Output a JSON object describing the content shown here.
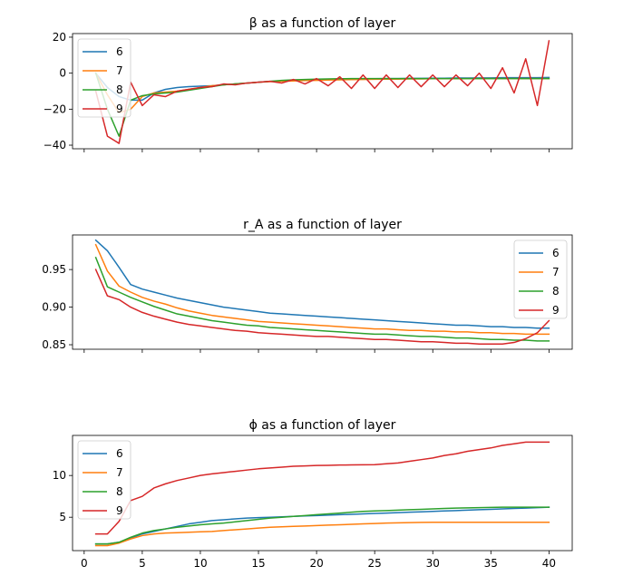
{
  "chart_data": [
    {
      "type": "line",
      "title": "β as a function of layer",
      "xlabel": "",
      "ylabel": "",
      "xlim": [
        -1,
        42
      ],
      "ylim": [
        -42,
        22
      ],
      "xticks": [
        0,
        5,
        10,
        15,
        20,
        25,
        30,
        35,
        40
      ],
      "xtick_labels_visible": false,
      "yticks": [
        -40,
        -20,
        0,
        20
      ],
      "ytick_labels": [
        "−40",
        "−20",
        "0",
        "20"
      ],
      "legend_position": "upper-left",
      "x": [
        1,
        2,
        3,
        4,
        5,
        6,
        7,
        8,
        9,
        10,
        11,
        12,
        13,
        14,
        15,
        16,
        17,
        18,
        19,
        20,
        21,
        22,
        23,
        24,
        25,
        26,
        27,
        28,
        29,
        30,
        31,
        32,
        33,
        34,
        35,
        36,
        37,
        38,
        39,
        40
      ],
      "series": [
        {
          "name": "6",
          "color": "#1f77b4",
          "values": [
            0,
            -8,
            -13,
            -15,
            -15,
            -11,
            -9,
            -8,
            -7.5,
            -7.2,
            -7,
            -6.5,
            -6,
            -5.5,
            -5,
            -4.6,
            -4.3,
            -4,
            -3.8,
            -3.6,
            -3.5,
            -3.4,
            -3.3,
            -3.2,
            -3.1,
            -3,
            -3,
            -2.9,
            -2.9,
            -2.8,
            -2.8,
            -2.7,
            -2.7,
            -2.6,
            -2.6,
            -2.5,
            -2.5,
            -2.5,
            -2.5,
            -2.4
          ]
        },
        {
          "name": "7",
          "color": "#ff7f0e",
          "values": [
            0,
            -12,
            -22,
            -20,
            -13,
            -11,
            -10.5,
            -10,
            -9,
            -8,
            -7,
            -6.5,
            -6,
            -5.5,
            -5,
            -4.7,
            -4.5,
            -4.3,
            -4.1,
            -4,
            -3.8,
            -3.7,
            -3.6,
            -3.5,
            -3.4,
            -3.3,
            -3.3,
            -3.2,
            -3.2,
            -3.1,
            -3.1,
            -3.1,
            -3,
            -3,
            -3,
            -3,
            -3,
            -3,
            -3,
            -3
          ]
        },
        {
          "name": "8",
          "color": "#2ca02c",
          "values": [
            0,
            -20,
            -35,
            -15,
            -12.5,
            -11.5,
            -11,
            -10.5,
            -9.5,
            -8.5,
            -7.5,
            -6.5,
            -6,
            -5.5,
            -5,
            -4.5,
            -4,
            -3.7,
            -3.5,
            -3.3,
            -3.2,
            -3.1,
            -3,
            -3,
            -3,
            -3,
            -3,
            -3,
            -3,
            -3,
            -3,
            -3,
            -3,
            -3,
            -3,
            -3,
            -3,
            -3,
            -3,
            -3
          ]
        },
        {
          "name": "9",
          "color": "#d62728",
          "values": [
            -10,
            -35,
            -39,
            -5,
            -18,
            -12,
            -13,
            -10,
            -9,
            -8,
            -7.5,
            -6,
            -6.5,
            -5.5,
            -5,
            -4.5,
            -5.5,
            -3.5,
            -6,
            -3,
            -7,
            -2,
            -8.5,
            -1,
            -8.5,
            -1,
            -8,
            -1,
            -7.5,
            -1,
            -7.5,
            -1,
            -7,
            0,
            -8.5,
            3,
            -11,
            8,
            -18,
            18
          ]
        }
      ]
    },
    {
      "type": "line",
      "title": "r_A as a function of layer",
      "xlabel": "",
      "ylabel": "",
      "xlim": [
        -1,
        42
      ],
      "ylim": [
        0.844,
        0.996
      ],
      "xticks": [
        0,
        5,
        10,
        15,
        20,
        25,
        30,
        35,
        40
      ],
      "xtick_labels_visible": false,
      "yticks": [
        0.85,
        0.9,
        0.95
      ],
      "ytick_labels": [
        "0.85",
        "0.90",
        "0.95"
      ],
      "legend_position": "upper-right",
      "x": [
        1,
        2,
        3,
        4,
        5,
        6,
        7,
        8,
        9,
        10,
        11,
        12,
        13,
        14,
        15,
        16,
        17,
        18,
        19,
        20,
        21,
        22,
        23,
        24,
        25,
        26,
        27,
        28,
        29,
        30,
        31,
        32,
        33,
        34,
        35,
        36,
        37,
        38,
        39,
        40
      ],
      "series": [
        {
          "name": "6",
          "color": "#1f77b4",
          "values": [
            0.989,
            0.975,
            0.953,
            0.93,
            0.924,
            0.92,
            0.916,
            0.912,
            0.909,
            0.906,
            0.903,
            0.9,
            0.898,
            0.896,
            0.894,
            0.892,
            0.891,
            0.89,
            0.889,
            0.888,
            0.887,
            0.886,
            0.885,
            0.884,
            0.883,
            0.882,
            0.881,
            0.88,
            0.879,
            0.878,
            0.877,
            0.876,
            0.876,
            0.875,
            0.874,
            0.874,
            0.873,
            0.873,
            0.872,
            0.872
          ]
        },
        {
          "name": "7",
          "color": "#ff7f0e",
          "values": [
            0.983,
            0.948,
            0.928,
            0.92,
            0.913,
            0.908,
            0.904,
            0.899,
            0.895,
            0.892,
            0.889,
            0.887,
            0.885,
            0.883,
            0.881,
            0.88,
            0.879,
            0.878,
            0.877,
            0.876,
            0.875,
            0.874,
            0.873,
            0.872,
            0.871,
            0.871,
            0.87,
            0.869,
            0.869,
            0.868,
            0.868,
            0.867,
            0.867,
            0.866,
            0.866,
            0.865,
            0.865,
            0.864,
            0.864,
            0.864
          ]
        },
        {
          "name": "8",
          "color": "#2ca02c",
          "values": [
            0.966,
            0.927,
            0.92,
            0.913,
            0.907,
            0.901,
            0.896,
            0.891,
            0.888,
            0.885,
            0.882,
            0.88,
            0.878,
            0.876,
            0.875,
            0.873,
            0.872,
            0.871,
            0.87,
            0.869,
            0.868,
            0.867,
            0.866,
            0.865,
            0.864,
            0.864,
            0.863,
            0.862,
            0.861,
            0.861,
            0.86,
            0.859,
            0.859,
            0.858,
            0.857,
            0.857,
            0.856,
            0.856,
            0.855,
            0.855
          ]
        },
        {
          "name": "9",
          "color": "#d62728",
          "values": [
            0.95,
            0.915,
            0.91,
            0.9,
            0.893,
            0.888,
            0.884,
            0.88,
            0.877,
            0.875,
            0.873,
            0.871,
            0.869,
            0.868,
            0.866,
            0.865,
            0.864,
            0.863,
            0.862,
            0.861,
            0.861,
            0.86,
            0.859,
            0.858,
            0.857,
            0.857,
            0.856,
            0.855,
            0.854,
            0.854,
            0.853,
            0.852,
            0.852,
            0.851,
            0.851,
            0.851,
            0.853,
            0.858,
            0.866,
            0.882
          ]
        }
      ]
    },
    {
      "type": "line",
      "title": "ϕ as a function of layer",
      "xlabel": "",
      "ylabel": "",
      "xlim": [
        -1,
        42
      ],
      "ylim": [
        1.0,
        14.8
      ],
      "xticks": [
        0,
        5,
        10,
        15,
        20,
        25,
        30,
        35,
        40
      ],
      "xtick_labels": [
        "0",
        "5",
        "10",
        "15",
        "20",
        "25",
        "30",
        "35",
        "40"
      ],
      "xtick_labels_visible": true,
      "yticks": [
        5,
        10
      ],
      "ytick_labels": [
        "5",
        "10"
      ],
      "legend_position": "upper-left",
      "x": [
        1,
        2,
        3,
        4,
        5,
        6,
        7,
        8,
        9,
        10,
        11,
        12,
        13,
        14,
        15,
        16,
        17,
        18,
        19,
        20,
        21,
        22,
        23,
        24,
        25,
        26,
        27,
        28,
        29,
        30,
        31,
        32,
        33,
        34,
        35,
        36,
        37,
        38,
        39,
        40
      ],
      "series": [
        {
          "name": "6",
          "color": "#1f77b4",
          "values": [
            1.8,
            1.8,
            2.0,
            2.5,
            3.0,
            3.3,
            3.6,
            3.9,
            4.2,
            4.4,
            4.6,
            4.7,
            4.8,
            4.9,
            4.95,
            5.0,
            5.05,
            5.1,
            5.15,
            5.2,
            5.25,
            5.3,
            5.35,
            5.4,
            5.45,
            5.5,
            5.55,
            5.6,
            5.65,
            5.7,
            5.75,
            5.8,
            5.85,
            5.9,
            5.95,
            6.0,
            6.05,
            6.1,
            6.15,
            6.2
          ]
        },
        {
          "name": "7",
          "color": "#ff7f0e",
          "values": [
            1.6,
            1.6,
            1.9,
            2.4,
            2.8,
            3.0,
            3.1,
            3.15,
            3.2,
            3.25,
            3.3,
            3.4,
            3.5,
            3.6,
            3.7,
            3.8,
            3.85,
            3.9,
            3.95,
            4.0,
            4.05,
            4.1,
            4.15,
            4.2,
            4.25,
            4.3,
            4.33,
            4.36,
            4.38,
            4.4,
            4.4,
            4.4,
            4.4,
            4.4,
            4.4,
            4.4,
            4.4,
            4.4,
            4.4,
            4.4
          ]
        },
        {
          "name": "8",
          "color": "#2ca02c",
          "values": [
            1.8,
            1.8,
            2.0,
            2.6,
            3.1,
            3.4,
            3.6,
            3.8,
            3.95,
            4.1,
            4.2,
            4.3,
            4.45,
            4.6,
            4.75,
            4.9,
            5.0,
            5.1,
            5.2,
            5.3,
            5.4,
            5.5,
            5.6,
            5.7,
            5.75,
            5.8,
            5.85,
            5.9,
            5.95,
            6.0,
            6.05,
            6.1,
            6.12,
            6.15,
            6.17,
            6.2,
            6.2,
            6.2,
            6.2,
            6.2
          ]
        },
        {
          "name": "9",
          "color": "#d62728",
          "values": [
            3.0,
            3.0,
            4.5,
            7.0,
            7.5,
            8.5,
            9.0,
            9.4,
            9.7,
            10.0,
            10.2,
            10.35,
            10.5,
            10.65,
            10.8,
            10.9,
            11.0,
            11.1,
            11.15,
            11.2,
            11.22,
            11.25,
            11.27,
            11.28,
            11.3,
            11.4,
            11.5,
            11.7,
            11.9,
            12.1,
            12.4,
            12.6,
            12.9,
            13.1,
            13.3,
            13.6,
            13.8,
            14.0,
            14.0,
            14.0
          ]
        }
      ]
    }
  ]
}
